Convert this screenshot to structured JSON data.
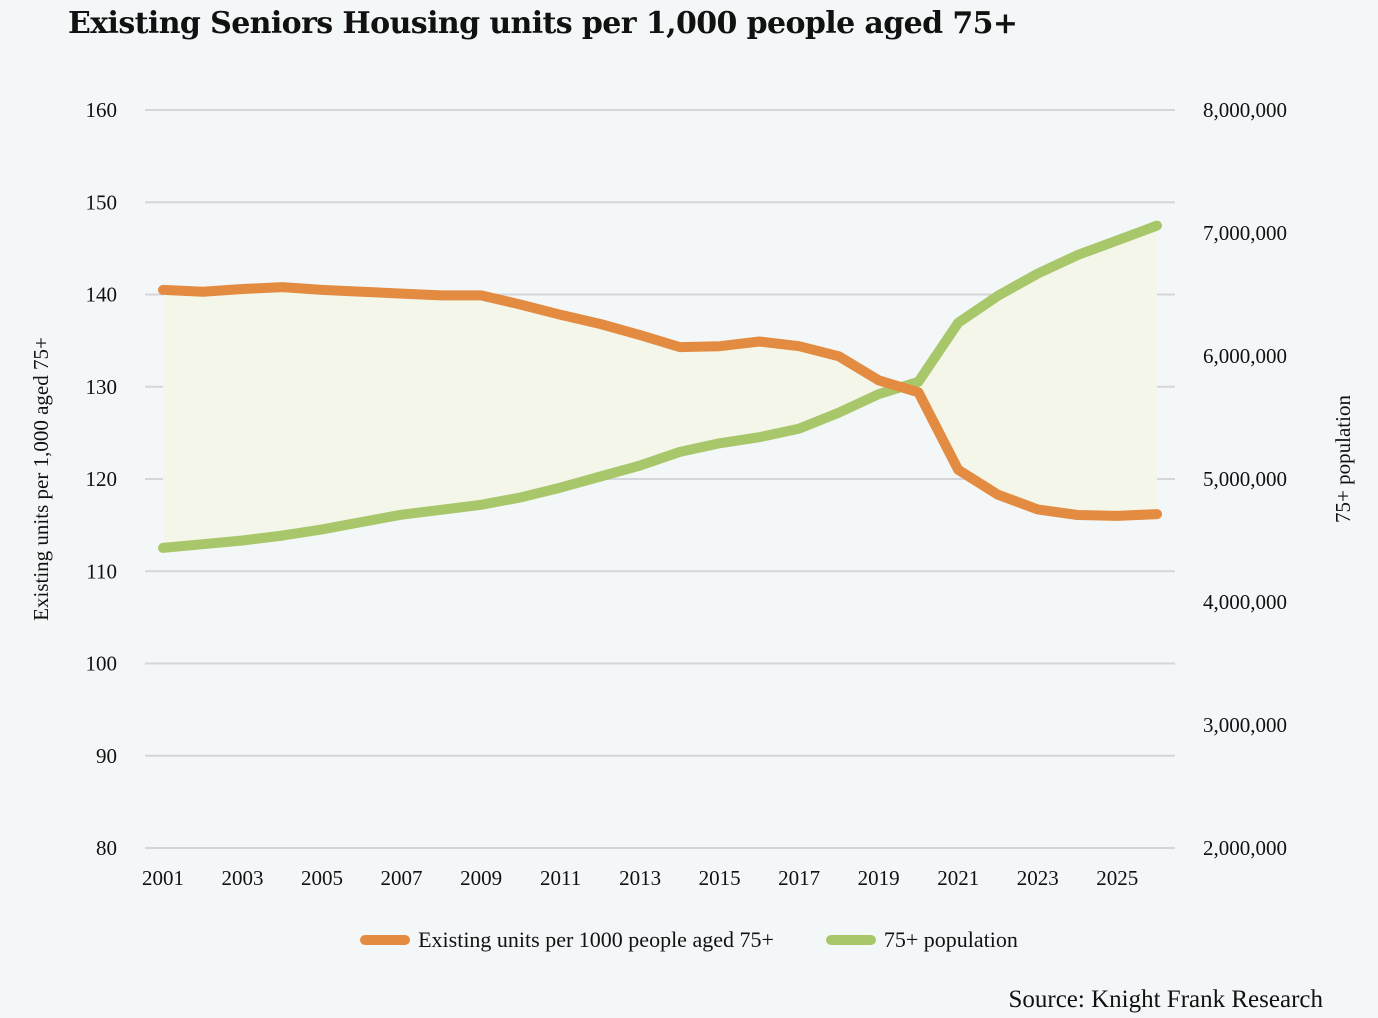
{
  "chart_data": {
    "type": "line",
    "title": "Existing Seniors Housing units per 1,000 people aged 75+",
    "x": [
      2001,
      2002,
      2003,
      2004,
      2005,
      2006,
      2007,
      2008,
      2009,
      2010,
      2011,
      2012,
      2013,
      2014,
      2015,
      2016,
      2017,
      2018,
      2019,
      2020,
      2021,
      2022,
      2023,
      2024,
      2025,
      2026
    ],
    "x_tick_labels": [
      "2001",
      "2003",
      "2005",
      "2007",
      "2009",
      "2011",
      "2013",
      "2015",
      "2017",
      "2019",
      "2021",
      "2023",
      "2025"
    ],
    "ylabel": "Existing units per 1,000 aged 75+",
    "ylim": [
      80,
      160
    ],
    "y_tick_labels": [
      "160",
      "150",
      "140",
      "130",
      "120",
      "110",
      "100",
      "90",
      "80"
    ],
    "y2label": "75+ population",
    "y2lim": [
      2000000,
      8000000
    ],
    "y2_tick_labels": [
      "8,000,000",
      "7,000,000",
      "6,000,000",
      "5,000,000",
      "4,000,000",
      "3,000,000",
      "2,000,000"
    ],
    "grid": true,
    "legend_position": "bottom",
    "series": [
      {
        "name": "Existing units per 1000 people aged 75+",
        "axis": "left",
        "color": "#e38b40",
        "values": [
          140.5,
          140.3,
          140.6,
          140.8,
          140.5,
          140.3,
          140.1,
          139.9,
          139.9,
          138.9,
          137.8,
          136.8,
          135.6,
          134.3,
          134.4,
          134.9,
          134.4,
          133.3,
          130.7,
          129.4,
          121.0,
          118.3,
          116.7,
          116.1,
          116.0,
          116.2
        ]
      },
      {
        "name": "75+ population",
        "axis": "right",
        "color": "#a8c76a",
        "values": [
          4440000,
          4470000,
          4500000,
          4540000,
          4590000,
          4650000,
          4710000,
          4750000,
          4790000,
          4850000,
          4930000,
          5020000,
          5110000,
          5220000,
          5290000,
          5340000,
          5410000,
          5540000,
          5690000,
          5790000,
          6270000,
          6490000,
          6670000,
          6820000,
          6940000,
          7060000
        ]
      }
    ],
    "fill_between_color": "#f3f6e9"
  },
  "source": "Source: Knight Frank Research"
}
